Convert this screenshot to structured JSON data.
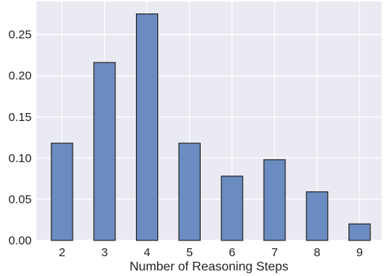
{
  "chart_data": {
    "type": "bar",
    "categories": [
      "2",
      "3",
      "4",
      "5",
      "6",
      "7",
      "8",
      "9"
    ],
    "values": [
      0.118,
      0.216,
      0.275,
      0.118,
      0.078,
      0.098,
      0.059,
      0.02
    ],
    "xlabel": "Number of Reasoning Steps",
    "ylabel": "",
    "ylim": [
      0,
      0.29
    ],
    "yticks": [
      0.0,
      0.05,
      0.1,
      0.15,
      0.2,
      0.25
    ],
    "ytick_labels": [
      "0.00",
      "0.05",
      "0.10",
      "0.15",
      "0.20",
      "0.25"
    ],
    "grid": true,
    "colors": {
      "bar_fill": "#6b8cc1",
      "bar_edge": "#2a2a2a",
      "plot_bg": "#eaeaf2",
      "grid": "#ffffff"
    }
  }
}
